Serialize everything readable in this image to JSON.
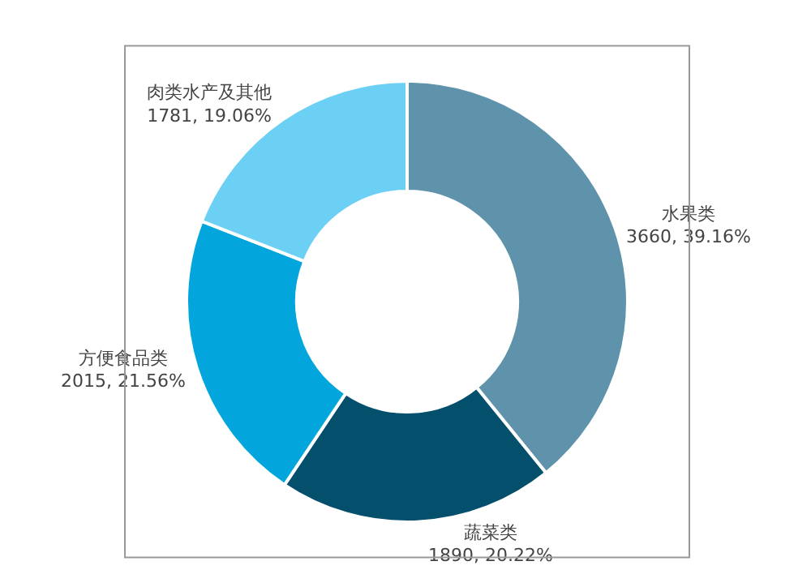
{
  "chart_data": {
    "type": "donut",
    "categories": [
      "水果类",
      "蔬菜类",
      "方便食品类",
      "肉类水产及其他"
    ],
    "values": [
      3660,
      1890,
      2015,
      1781
    ],
    "colors": [
      "#5e93ab",
      "#04506c",
      "#02a6dc",
      "#6ccff4"
    ],
    "value_labels": [
      "3660, 39.16%",
      "1890, 20.22%",
      "2015, 21.56%",
      "1781, 19.06%"
    ],
    "legend": false
  }
}
